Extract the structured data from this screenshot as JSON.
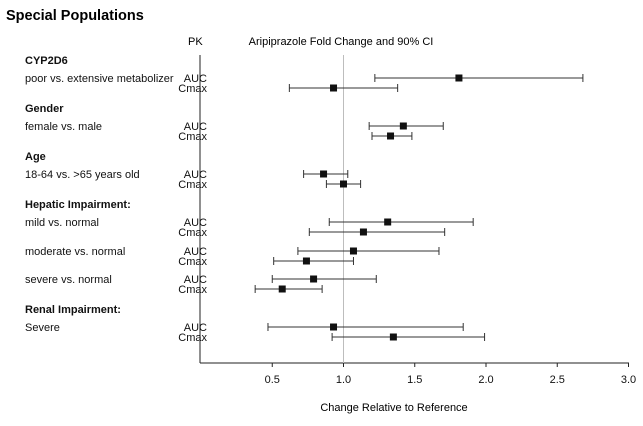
{
  "chart_data": {
    "type": "forest",
    "title": "Special Populations",
    "pk_header": "PK",
    "subtitle": "Aripiprazole Fold Change and 90% CI",
    "xlabel": "Change Relative to Reference",
    "ylabel": "",
    "xlim": [
      0.0,
      3.0
    ],
    "reference_line": 1.0,
    "x_ticks": [
      {
        "value": 0.5,
        "label": "0.5"
      },
      {
        "value": 1.0,
        "label": "1.0"
      },
      {
        "value": 1.5,
        "label": "1.5"
      },
      {
        "value": 2.0,
        "label": "2.0"
      },
      {
        "value": 2.5,
        "label": "2.5"
      },
      {
        "value": 3.0,
        "label": "3.0"
      }
    ],
    "groups": [
      {
        "header": "CYP2D6",
        "label": "poor vs. extensive metabolizer",
        "rows": [
          {
            "pk": "AUC",
            "estimate": 1.81,
            "lower": 1.22,
            "upper": 2.68
          },
          {
            "pk": "Cmax",
            "estimate": 0.93,
            "lower": 0.62,
            "upper": 1.38
          }
        ]
      },
      {
        "header": "Gender",
        "label": "female vs. male",
        "rows": [
          {
            "pk": "AUC",
            "estimate": 1.42,
            "lower": 1.18,
            "upper": 1.7
          },
          {
            "pk": "Cmax",
            "estimate": 1.33,
            "lower": 1.2,
            "upper": 1.48
          }
        ]
      },
      {
        "header": "Age",
        "label": "18-64 vs. >65 years old",
        "rows": [
          {
            "pk": "AUC",
            "estimate": 0.86,
            "lower": 0.72,
            "upper": 1.03
          },
          {
            "pk": "Cmax",
            "estimate": 1.0,
            "lower": 0.88,
            "upper": 1.12
          }
        ]
      },
      {
        "header": "Hepatic Impairment:",
        "label": "mild vs. normal",
        "rows": [
          {
            "pk": "AUC",
            "estimate": 1.31,
            "lower": 0.9,
            "upper": 1.91
          },
          {
            "pk": "Cmax",
            "estimate": 1.14,
            "lower": 0.76,
            "upper": 1.71
          }
        ]
      },
      {
        "header": "",
        "label": "moderate vs. normal",
        "rows": [
          {
            "pk": "AUC",
            "estimate": 1.07,
            "lower": 0.68,
            "upper": 1.67
          },
          {
            "pk": "Cmax",
            "estimate": 0.74,
            "lower": 0.51,
            "upper": 1.07
          }
        ]
      },
      {
        "header": "",
        "label": "severe vs. normal",
        "rows": [
          {
            "pk": "AUC",
            "estimate": 0.79,
            "lower": 0.5,
            "upper": 1.23
          },
          {
            "pk": "Cmax",
            "estimate": 0.57,
            "lower": 0.38,
            "upper": 0.85
          }
        ]
      },
      {
        "header": "Renal Impairment:",
        "label": "Severe",
        "rows": [
          {
            "pk": "AUC",
            "estimate": 0.93,
            "lower": 0.47,
            "upper": 1.84
          },
          {
            "pk": "Cmax",
            "estimate": 1.35,
            "lower": 0.92,
            "upper": 1.99
          }
        ]
      }
    ]
  }
}
